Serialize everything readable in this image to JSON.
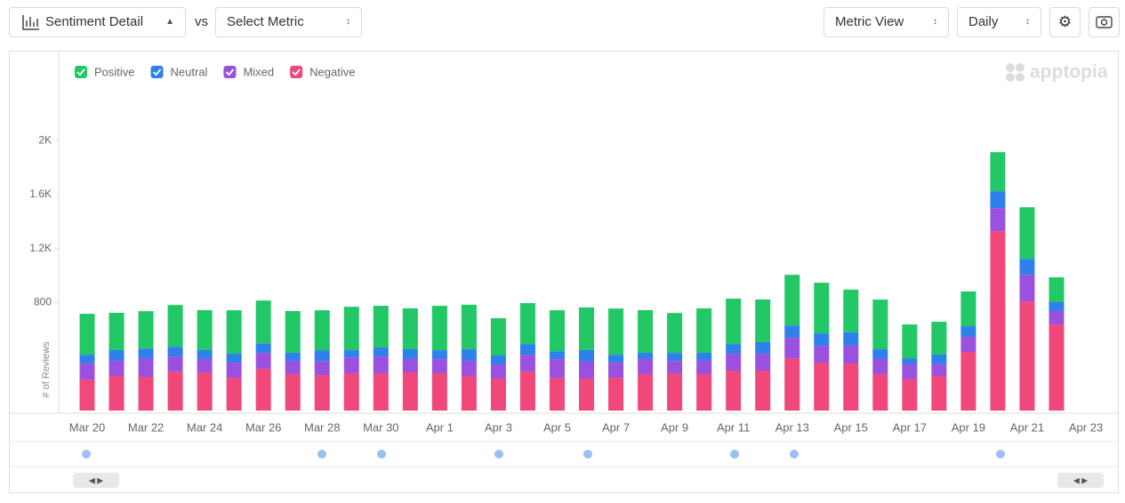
{
  "toolbar": {
    "primary": "Sentiment Detail",
    "vs": "vs",
    "secondary": "Select Metric",
    "view": "Metric View",
    "interval": "Daily"
  },
  "brand": "apptopia",
  "chart_data": {
    "type": "stacked_bar",
    "y_label": "# of Reviews",
    "categories": [
      "Mar 20",
      null,
      "Mar 22",
      null,
      "Mar 24",
      null,
      "Mar 26",
      null,
      "Mar 28",
      null,
      "Mar 30",
      null,
      "Apr 1",
      null,
      "Apr 3",
      null,
      "Apr 5",
      null,
      "Apr 7",
      null,
      "Apr 9",
      null,
      "Apr 11",
      null,
      "Apr 13",
      null,
      "Apr 15",
      null,
      "Apr 17",
      null,
      "Apr 19",
      null,
      "Apr 21",
      null,
      "Apr 23"
    ],
    "series": [
      {
        "name": "Positive",
        "color": "#21c865",
        "values": [
          303,
          276,
          276,
          309,
          296,
          322,
          316,
          309,
          296,
          322,
          309,
          303,
          329,
          329,
          276,
          303,
          303,
          316,
          342,
          316,
          296,
          329,
          336,
          316,
          375,
          375,
          316,
          368,
          250,
          243,
          257,
          289,
          382,
          184,
          null
        ]
      },
      {
        "name": "Neutral",
        "color": "#2f80ed",
        "values": [
          66,
          79,
          72,
          72,
          66,
          66,
          72,
          59,
          79,
          53,
          66,
          72,
          66,
          86,
          66,
          79,
          59,
          86,
          59,
          46,
          59,
          59,
          72,
          86,
          92,
          92,
          99,
          72,
          46,
          72,
          79,
          125,
          118,
          66,
          null
        ]
      },
      {
        "name": "Mixed",
        "color": "#9b51e0",
        "values": [
          118,
          112,
          138,
          112,
          99,
          112,
          118,
          99,
          105,
          118,
          125,
          99,
          105,
          112,
          105,
          125,
          138,
          125,
          112,
          112,
          92,
          99,
          125,
          125,
          151,
          125,
          132,
          112,
          112,
          86,
          112,
          171,
          197,
          99,
          null
        ]
      },
      {
        "name": "Negative",
        "color": "#f0487a",
        "values": [
          230,
          257,
          250,
          289,
          283,
          243,
          309,
          270,
          263,
          276,
          276,
          283,
          276,
          257,
          237,
          289,
          243,
          237,
          243,
          270,
          276,
          270,
          296,
          296,
          388,
          355,
          349,
          270,
          230,
          257,
          434,
          1329,
          809,
          638,
          null
        ]
      }
    ],
    "ylim": [
      0,
      2600
    ],
    "yticks": [
      800,
      {
        "value": 1200,
        "label": "1.2K"
      },
      {
        "value": 1600,
        "label": "1.6K"
      },
      {
        "value": 2000,
        "label": "2K"
      }
    ],
    "grid": false,
    "legend": "top-left"
  }
}
